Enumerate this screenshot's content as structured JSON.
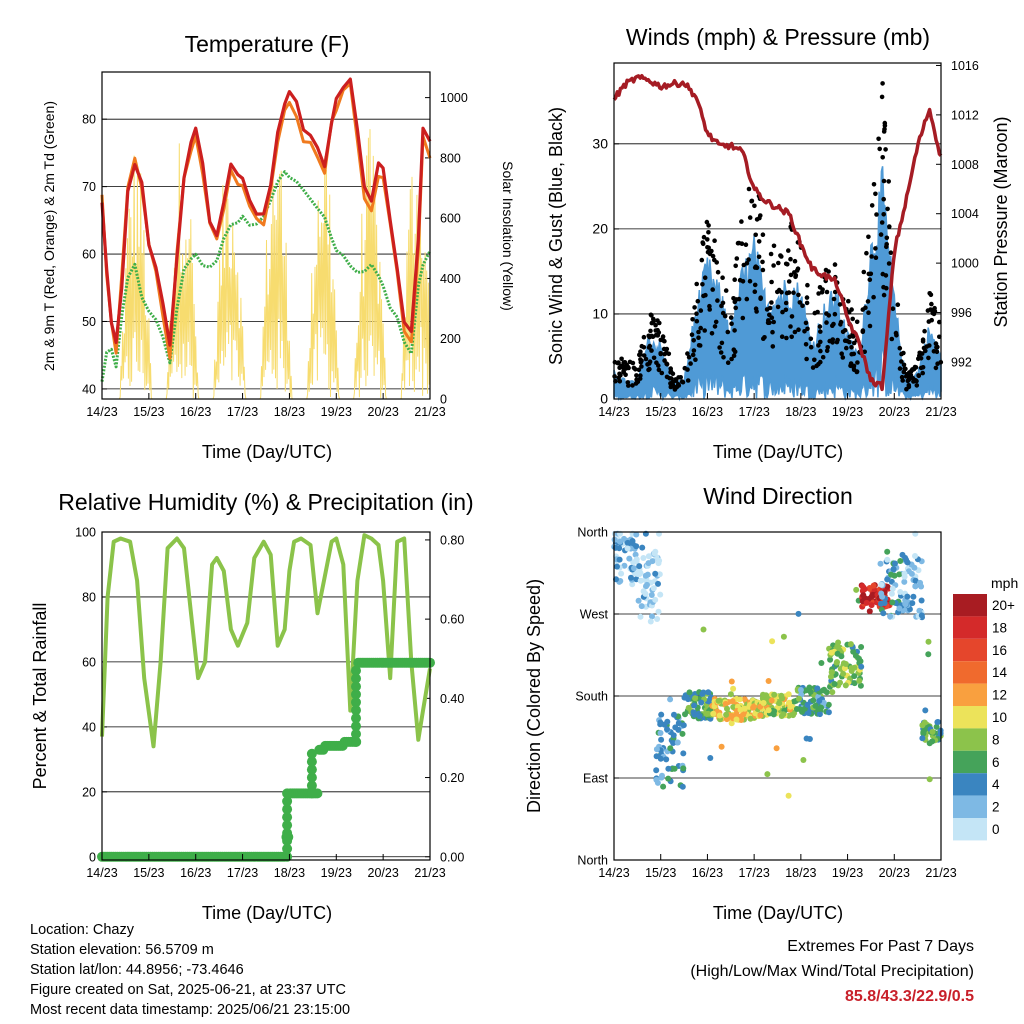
{
  "colors": {
    "temp2m": "#cc1f1f",
    "temp9m": "#f07a1e",
    "dewpoint": "#3fae49",
    "solar": "#f7dc6f",
    "gust": "#000000",
    "wind": "#4f9ad6",
    "pressure": "#a51c24",
    "rh": "#8bc34a",
    "precip": "#3fae49",
    "extremes": "#c8202a"
  },
  "time_ticks": [
    "14/23",
    "15/23",
    "16/23",
    "17/23",
    "18/23",
    "19/23",
    "20/23",
    "21/23"
  ],
  "time_xlabel": "Time (Day/UTC)",
  "chart_data": [
    {
      "type": "line",
      "title": "Temperature (F)",
      "xlabel": "Time (Day/UTC)",
      "ylabel": "2m & 9m T (Red, Orange) & 2m Td (Green)",
      "y2label": "Solar Insolation (Yellow)",
      "ylim": [
        38.5,
        87
      ],
      "y2lim": [
        0,
        1085
      ],
      "yticks": [
        "40",
        "50",
        "60",
        "70",
        "80"
      ],
      "y2ticks": [
        "0",
        "200",
        "400",
        "600",
        "800",
        "1000"
      ],
      "x_days": [
        0,
        0.1,
        0.2,
        0.3,
        0.42,
        0.55,
        0.7,
        0.85,
        1.0,
        1.15,
        1.3,
        1.45,
        1.6,
        1.75,
        1.9,
        2.0,
        2.15,
        2.3,
        2.45,
        2.6,
        2.75,
        2.9,
        3.0,
        3.15,
        3.3,
        3.45,
        3.6,
        3.75,
        3.9,
        4.0,
        4.15,
        4.3,
        4.45,
        4.6,
        4.75,
        4.9,
        5.0,
        5.15,
        5.3,
        5.45,
        5.6,
        5.75,
        5.9,
        6.0,
        6.15,
        6.3,
        6.45,
        6.6,
        6.75,
        6.85,
        7.0
      ],
      "series": [
        {
          "name": "2m T",
          "values": [
            68,
            58,
            50,
            47,
            55,
            70,
            74,
            70,
            62,
            58,
            52,
            46,
            60,
            72,
            77,
            78,
            73,
            65,
            62,
            68,
            74,
            72,
            71,
            68,
            66,
            66,
            70,
            78,
            83,
            84,
            82,
            78,
            77,
            76,
            73,
            80,
            83,
            85,
            86,
            78,
            70,
            68,
            73,
            72,
            65,
            58,
            50,
            48,
            62,
            78,
            76
          ]
        },
        {
          "name": "9m T",
          "values": [
            68,
            57,
            50,
            46,
            56,
            70,
            74,
            69,
            61,
            57,
            51,
            45,
            60,
            72,
            76,
            77,
            72,
            64,
            62,
            67,
            73,
            71,
            70,
            67,
            65,
            65,
            70,
            77,
            82,
            83,
            81,
            77,
            76,
            75,
            72,
            79,
            82,
            84,
            85,
            77,
            69,
            67,
            72,
            71,
            64,
            57,
            49,
            47,
            61,
            77,
            75
          ]
        },
        {
          "name": "2m Td",
          "values": [
            41,
            45,
            46,
            44,
            50,
            56,
            58,
            54,
            52,
            50,
            47,
            44,
            52,
            57,
            59,
            60,
            58,
            58,
            59,
            62,
            64,
            65,
            66,
            65,
            65,
            65,
            68,
            71,
            73,
            72,
            70,
            69,
            68,
            66,
            65,
            62,
            60,
            59,
            58,
            57,
            58,
            58,
            57,
            55,
            52,
            50,
            47,
            46,
            55,
            59,
            61
          ]
        }
      ],
      "solar_peaks": [
        {
          "day": 0.72,
          "value": 880
        },
        {
          "day": 1.72,
          "value": 920
        },
        {
          "day": 2.72,
          "value": 880
        },
        {
          "day": 3.72,
          "value": 940
        },
        {
          "day": 4.72,
          "value": 960
        },
        {
          "day": 5.72,
          "value": 900
        },
        {
          "day": 6.72,
          "value": 950
        }
      ]
    },
    {
      "type": "scatter",
      "title": "Winds (mph) & Pressure (mb)",
      "xlabel": "Time (Day/UTC)",
      "ylabel": "Sonic Wind & Gust (Blue, Black)",
      "y2label": "Station Pressure (Maroon)",
      "ylim": [
        0,
        39.5
      ],
      "y2lim": [
        989,
        1016.2
      ],
      "yticks": [
        "0",
        "10",
        "20",
        "30"
      ],
      "y2ticks": [
        "992",
        "996",
        "1000",
        "1004",
        "1008",
        "1012",
        "1016"
      ],
      "x_days": [
        0,
        0.25,
        0.5,
        0.75,
        1.0,
        1.25,
        1.5,
        1.75,
        2.0,
        2.25,
        2.5,
        2.75,
        3.0,
        3.25,
        3.5,
        3.75,
        4.0,
        4.25,
        4.5,
        4.75,
        5.0,
        5.25,
        5.5,
        5.75,
        6.0,
        6.25,
        6.5,
        6.75,
        7.0
      ],
      "gust_envelope": [
        6,
        4,
        4,
        10,
        9,
        3,
        3,
        12,
        20,
        16,
        10,
        22,
        26,
        17,
        18,
        21,
        17,
        9,
        14,
        17,
        11,
        8,
        24,
        34,
        14,
        3,
        4,
        12,
        9
      ],
      "wind_envelope": [
        3,
        2,
        2,
        7,
        6,
        2,
        2,
        10,
        15,
        12,
        8,
        14,
        17,
        11,
        12,
        13,
        12,
        6,
        10,
        12,
        7,
        5,
        17,
        24,
        11,
        2,
        3,
        8,
        5
      ],
      "pressure": [
        1013.3,
        1014.5,
        1015.0,
        1014.8,
        1014.3,
        1014.5,
        1014.6,
        1013.5,
        1010.5,
        1009.5,
        1009.5,
        1009.0,
        1006.0,
        1005.0,
        1004.5,
        1004.0,
        1001.5,
        999.5,
        999.0,
        998.5,
        995.5,
        993.5,
        990.5,
        990.0,
        1001.0,
        1005.0,
        1009.5,
        1012.5,
        1008.5
      ]
    },
    {
      "type": "line",
      "title": "Relative Humidity (%) & Precipitation (in)",
      "xlabel": "Time (Day/UTC)",
      "ylabel": "Percent & Total Rainfall",
      "ylim": [
        -1,
        100
      ],
      "y2lim": [
        -0.0082,
        0.82
      ],
      "yticks": [
        "0",
        "20",
        "40",
        "60",
        "80",
        "100"
      ],
      "y2ticks": [
        "0.00",
        "0.20",
        "0.40",
        "0.60",
        "0.80"
      ],
      "x_days": [
        0,
        0.12,
        0.25,
        0.4,
        0.6,
        0.75,
        0.9,
        1.1,
        1.25,
        1.4,
        1.6,
        1.75,
        1.9,
        2.05,
        2.2,
        2.35,
        2.45,
        2.6,
        2.75,
        2.9,
        3.1,
        3.25,
        3.45,
        3.6,
        3.75,
        3.9,
        4.0,
        4.1,
        4.25,
        4.45,
        4.6,
        4.75,
        4.9,
        5.0,
        5.15,
        5.3,
        5.45,
        5.6,
        5.75,
        5.9,
        6.0,
        6.15,
        6.3,
        6.45,
        6.6,
        6.75,
        6.85,
        7.0
      ],
      "series": [
        {
          "name": "RH",
          "values": [
            37,
            80,
            97,
            98,
            97,
            85,
            55,
            34,
            60,
            95,
            98,
            95,
            75,
            55,
            60,
            90,
            92,
            88,
            70,
            65,
            72,
            92,
            97,
            93,
            65,
            70,
            88,
            97,
            98,
            96,
            75,
            86,
            97,
            98,
            90,
            45,
            85,
            99,
            98,
            96,
            85,
            55,
            97,
            98,
            60,
            36,
            45,
            58
          ]
        },
        {
          "name": "Precip",
          "values": [
            0,
            0,
            0,
            0,
            0,
            0,
            0,
            0,
            0,
            0,
            0,
            0,
            0,
            0,
            0,
            0,
            0,
            0,
            0,
            0,
            0,
            0,
            0,
            0,
            0,
            0.05,
            0.16,
            0.16,
            0.16,
            0.16,
            0.27,
            0.28,
            0.28,
            0.28,
            0.29,
            0.29,
            0.49,
            0.49,
            0.49,
            0.49,
            0.49,
            0.49,
            0.49,
            0.49,
            0.49,
            0.49,
            0.49,
            0.49
          ]
        }
      ]
    },
    {
      "type": "scatter",
      "title": "Wind Direction",
      "xlabel": "Time (Day/UTC)",
      "ylabel": "Direction (Colored By Speed)",
      "ylim": [
        0,
        360
      ],
      "yticks": [
        "North",
        "East",
        "South",
        "West",
        "North"
      ],
      "colorbar": {
        "unit": "mph",
        "labels": [
          "20+",
          "18",
          "16",
          "14",
          "12",
          "10",
          "8",
          "6",
          "4",
          "2",
          "0"
        ],
        "colors": [
          "#a81c22",
          "#d42a2a",
          "#e5462c",
          "#f06a2d",
          "#f9a03f",
          "#ece35a",
          "#8cc34b",
          "#45a35a",
          "#3a85c0",
          "#7eb9e4",
          "#c4e5f6"
        ]
      },
      "direction_clusters": [
        {
          "day_start": 0.0,
          "day_end": 0.5,
          "dir_center": 330,
          "dir_spread": 30,
          "speed": 2
        },
        {
          "day_start": 0.5,
          "day_end": 1.0,
          "dir_center": 300,
          "dir_spread": 40,
          "speed": 1
        },
        {
          "day_start": 0.9,
          "day_end": 1.5,
          "dir_center": 120,
          "dir_spread": 40,
          "speed": 4
        },
        {
          "day_start": 1.5,
          "day_end": 2.1,
          "dir_center": 170,
          "dir_spread": 15,
          "speed": 6
        },
        {
          "day_start": 2.1,
          "day_end": 3.1,
          "dir_center": 165,
          "dir_spread": 12,
          "speed": 10
        },
        {
          "day_start": 3.1,
          "day_end": 3.9,
          "dir_center": 170,
          "dir_spread": 12,
          "speed": 9
        },
        {
          "day_start": 3.9,
          "day_end": 4.6,
          "dir_center": 175,
          "dir_spread": 15,
          "speed": 5
        },
        {
          "day_start": 4.6,
          "day_end": 5.3,
          "dir_center": 215,
          "dir_spread": 25,
          "speed": 7
        },
        {
          "day_start": 5.3,
          "day_end": 5.9,
          "dir_center": 290,
          "dir_spread": 12,
          "speed": 18
        },
        {
          "day_start": 5.7,
          "day_end": 6.6,
          "dir_center": 300,
          "dir_spread": 35,
          "speed": 3
        },
        {
          "day_start": 6.6,
          "day_end": 7.0,
          "dir_center": 140,
          "dir_spread": 12,
          "speed": 6
        }
      ]
    }
  ],
  "info": {
    "location": "Location: Chazy",
    "elevation": "Station elevation: 56.5709 m",
    "latlon": "Station lat/lon: 44.8956; -73.4646",
    "created": "Figure created on Sat, 2025-06-21, at 23:37 UTC",
    "recent": "Most recent data timestamp: 2025/06/21 23:15:00"
  },
  "extremes": {
    "title": "Extremes For Past 7 Days",
    "subtitle": "(High/Low/Max Wind/Total Precipitation)",
    "values": "85.8/43.3/22.9/0.5"
  }
}
